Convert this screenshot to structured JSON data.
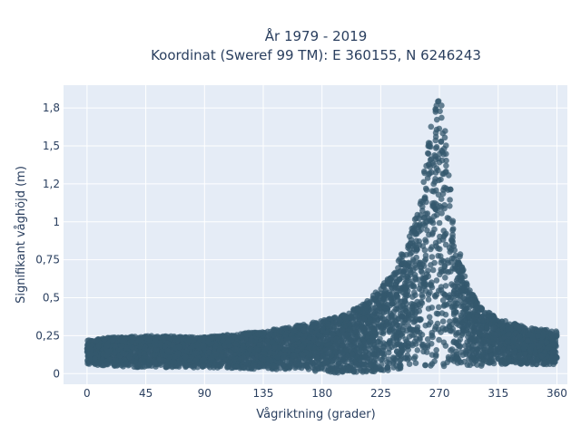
{
  "chart_data": {
    "type": "scatter",
    "title_line1": "År 1979 - 2019",
    "title_line2": "Koordinat (Sweref 99 TM): E 360155, N 6246243",
    "xlabel": "Vågriktning (grader)",
    "ylabel": "Signifikant våghöjd (m)",
    "xlim": [
      -18,
      368
    ],
    "ylim": [
      -0.07,
      1.9
    ],
    "x_ticks": [
      0,
      45,
      90,
      135,
      180,
      225,
      270,
      315,
      360
    ],
    "x_tick_labels": [
      "0",
      "45",
      "90",
      "135",
      "180",
      "225",
      "270",
      "315",
      "360"
    ],
    "y_ticks": [
      0,
      0.25,
      0.5,
      0.75,
      1,
      1.25,
      1.5,
      1.75
    ],
    "y_tick_labels": [
      "0",
      "0,25",
      "0,5",
      "0,75",
      "1",
      "1,2",
      "1,5",
      "1,8"
    ],
    "grid": true,
    "marker_color": "#34586e",
    "background_color": "#e5ecf6",
    "envelope": {
      "direction": [
        0,
        20,
        45,
        90,
        135,
        170,
        195,
        215,
        230,
        245,
        255,
        262,
        268,
        272,
        276,
        282,
        290,
        300,
        315,
        340,
        360
      ],
      "max_height": [
        0.22,
        0.24,
        0.25,
        0.24,
        0.28,
        0.33,
        0.38,
        0.48,
        0.62,
        0.85,
        1.15,
        1.55,
        1.85,
        1.82,
        1.45,
        0.95,
        0.62,
        0.45,
        0.36,
        0.3,
        0.28
      ],
      "min_height": [
        0.06,
        0.05,
        0.04,
        0.04,
        0.03,
        0.02,
        0.0,
        0.01,
        0.02,
        0.03,
        0.04,
        0.05,
        0.05,
        0.05,
        0.04,
        0.04,
        0.04,
        0.05,
        0.06,
        0.06,
        0.06
      ]
    }
  }
}
